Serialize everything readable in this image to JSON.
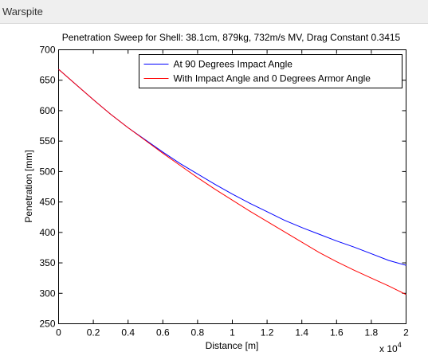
{
  "window": {
    "title": "Warspite"
  },
  "chart_data": {
    "type": "line",
    "title": "Penetration Sweep for Shell: 38.1cm, 879kg, 732m/s MV, Drag Constant 0.3415",
    "xlabel": "Distance [m]",
    "ylabel": "Penetration [mm]",
    "x_exponent_label": "x 10",
    "x_exponent_power": "4",
    "xlim": [
      0,
      2
    ],
    "ylim": [
      250,
      700
    ],
    "xticks": [
      0,
      0.2,
      0.4,
      0.6,
      0.8,
      1,
      1.2,
      1.4,
      1.6,
      1.8,
      2
    ],
    "xtick_labels": [
      "0",
      "0.2",
      "0.4",
      "0.6",
      "0.8",
      "1",
      "1.2",
      "1.4",
      "1.6",
      "1.8",
      "2"
    ],
    "yticks": [
      250,
      300,
      350,
      400,
      450,
      500,
      550,
      600,
      650,
      700
    ],
    "ytick_labels": [
      "250",
      "300",
      "350",
      "400",
      "450",
      "500",
      "550",
      "600",
      "650",
      "700"
    ],
    "grid": false,
    "legend_position": "top-right",
    "series": [
      {
        "name": "At 90 Degrees Impact Angle",
        "color": "#0000ff",
        "x": [
          0,
          0.1,
          0.2,
          0.3,
          0.4,
          0.5,
          0.6,
          0.7,
          0.8,
          0.9,
          1.0,
          1.1,
          1.2,
          1.3,
          1.4,
          1.5,
          1.6,
          1.7,
          1.8,
          1.9,
          2.0
        ],
        "y": [
          668,
          643,
          618,
          594,
          572,
          552,
          532,
          513,
          496,
          479,
          463,
          448,
          434,
          420,
          408,
          397,
          386,
          376,
          365,
          354,
          346
        ]
      },
      {
        "name": "With Impact Angle and 0 Degrees Armor Angle",
        "color": "#ff0000",
        "x": [
          0,
          0.1,
          0.2,
          0.3,
          0.4,
          0.5,
          0.6,
          0.7,
          0.8,
          0.9,
          1.0,
          1.1,
          1.2,
          1.3,
          1.4,
          1.5,
          1.6,
          1.7,
          1.8,
          1.9,
          2.0
        ],
        "y": [
          668,
          643,
          618,
          594,
          572,
          551,
          530,
          510,
          490,
          471,
          453,
          435,
          418,
          401,
          384,
          367,
          352,
          338,
          325,
          312,
          298
        ]
      }
    ]
  }
}
